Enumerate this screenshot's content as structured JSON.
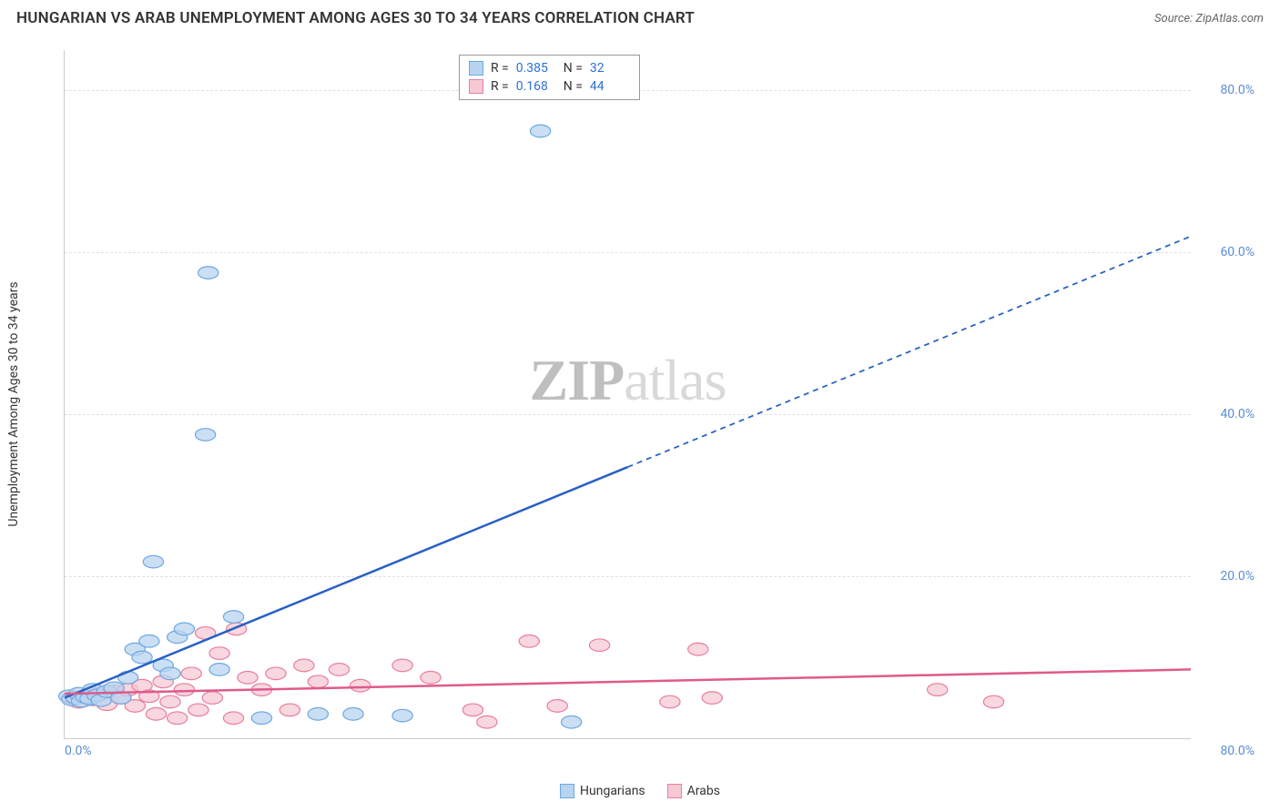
{
  "header": {
    "title": "HUNGARIAN VS ARAB UNEMPLOYMENT AMONG AGES 30 TO 34 YEARS CORRELATION CHART",
    "source": "Source: ZipAtlas.com"
  },
  "watermark": {
    "bold": "ZIP",
    "light": "atlas"
  },
  "chart": {
    "type": "scatter",
    "background_color": "#ffffff",
    "grid_color": "#e0e0e0",
    "axis_color": "#cccccc",
    "ylabel": "Unemployment Among Ages 30 to 34 years",
    "label_fontsize": 14,
    "xlim": [
      0,
      80
    ],
    "ylim": [
      0,
      85
    ],
    "xticks": {
      "min_label": "0.0%",
      "max_label": "80.0%"
    },
    "yticks": [
      {
        "value": 20,
        "label": "20.0%"
      },
      {
        "value": 40,
        "label": "40.0%"
      },
      {
        "value": 60,
        "label": "60.0%"
      },
      {
        "value": 80,
        "label": "80.0%"
      }
    ],
    "tick_color": "#5b8dd6",
    "tick_fontsize": 14,
    "series": [
      {
        "name": "Hungarians",
        "marker_fill": "#b8d4f0",
        "marker_stroke": "#6ea8e0",
        "marker_radius": 9,
        "marker_opacity": 0.75,
        "line_color": "#2860c4",
        "line_width": 2.5,
        "extrapolate_dash": "6,5",
        "R": "0.385",
        "N": "32",
        "trend": {
          "x1": 0,
          "y1": 5,
          "x2": 80,
          "y2": 62,
          "solid_until_x": 40
        },
        "points": [
          [
            0.3,
            5.2
          ],
          [
            0.5,
            4.8
          ],
          [
            0.8,
            5.0
          ],
          [
            1.0,
            5.5
          ],
          [
            1.2,
            4.6
          ],
          [
            1.5,
            5.1
          ],
          [
            1.8,
            4.9
          ],
          [
            2.0,
            6.0
          ],
          [
            2.3,
            5.3
          ],
          [
            2.6,
            4.7
          ],
          [
            3.0,
            5.8
          ],
          [
            3.5,
            6.2
          ],
          [
            4.0,
            5.0
          ],
          [
            4.5,
            7.5
          ],
          [
            5.0,
            11.0
          ],
          [
            5.5,
            10.0
          ],
          [
            6.0,
            12.0
          ],
          [
            6.3,
            21.8
          ],
          [
            7.0,
            9.0
          ],
          [
            7.5,
            8.0
          ],
          [
            8.0,
            12.5
          ],
          [
            8.5,
            13.5
          ],
          [
            10.0,
            37.5
          ],
          [
            10.2,
            57.5
          ],
          [
            11.0,
            8.5
          ],
          [
            12.0,
            15.0
          ],
          [
            14.0,
            2.5
          ],
          [
            18.0,
            3.0
          ],
          [
            20.5,
            3.0
          ],
          [
            24.0,
            2.8
          ],
          [
            36.0,
            2.0
          ],
          [
            33.8,
            75.0
          ]
        ]
      },
      {
        "name": "Arabs",
        "marker_fill": "#f6c9d4",
        "marker_stroke": "#e87fa0",
        "marker_radius": 9,
        "marker_opacity": 0.75,
        "line_color": "#e05a8a",
        "line_width": 2.5,
        "R": "0.168",
        "N": "44",
        "trend": {
          "x1": 0,
          "y1": 5.5,
          "x2": 80,
          "y2": 8.5,
          "solid_until_x": 80
        },
        "points": [
          [
            0.5,
            5.0
          ],
          [
            1.0,
            4.5
          ],
          [
            1.5,
            5.2
          ],
          [
            2.0,
            4.8
          ],
          [
            2.5,
            5.5
          ],
          [
            3.0,
            4.2
          ],
          [
            3.5,
            5.8
          ],
          [
            4.0,
            5.0
          ],
          [
            4.5,
            6.0
          ],
          [
            5.0,
            4.0
          ],
          [
            5.5,
            6.5
          ],
          [
            6.0,
            5.2
          ],
          [
            6.5,
            3.0
          ],
          [
            7.0,
            7.0
          ],
          [
            7.5,
            4.5
          ],
          [
            8.0,
            2.5
          ],
          [
            8.5,
            6.0
          ],
          [
            9.0,
            8.0
          ],
          [
            9.5,
            3.5
          ],
          [
            10.0,
            13.0
          ],
          [
            10.5,
            5.0
          ],
          [
            11.0,
            10.5
          ],
          [
            12.0,
            2.5
          ],
          [
            12.2,
            13.5
          ],
          [
            13.0,
            7.5
          ],
          [
            14.0,
            6.0
          ],
          [
            15.0,
            8.0
          ],
          [
            16.0,
            3.5
          ],
          [
            17.0,
            9.0
          ],
          [
            18.0,
            7.0
          ],
          [
            19.5,
            8.5
          ],
          [
            21.0,
            6.5
          ],
          [
            24.0,
            9.0
          ],
          [
            26.0,
            7.5
          ],
          [
            29.0,
            3.5
          ],
          [
            30.0,
            2.0
          ],
          [
            33.0,
            12.0
          ],
          [
            35.0,
            4.0
          ],
          [
            38.0,
            11.5
          ],
          [
            43.0,
            4.5
          ],
          [
            45.0,
            11.0
          ],
          [
            46.0,
            5.0
          ],
          [
            62.0,
            6.0
          ],
          [
            66.0,
            4.5
          ]
        ]
      }
    ],
    "legend": {
      "items": [
        {
          "label": "Hungarians",
          "fill": "#b8d4f0",
          "stroke": "#6ea8e0"
        },
        {
          "label": "Arabs",
          "fill": "#f6c9d4",
          "stroke": "#e87fa0"
        }
      ]
    }
  }
}
